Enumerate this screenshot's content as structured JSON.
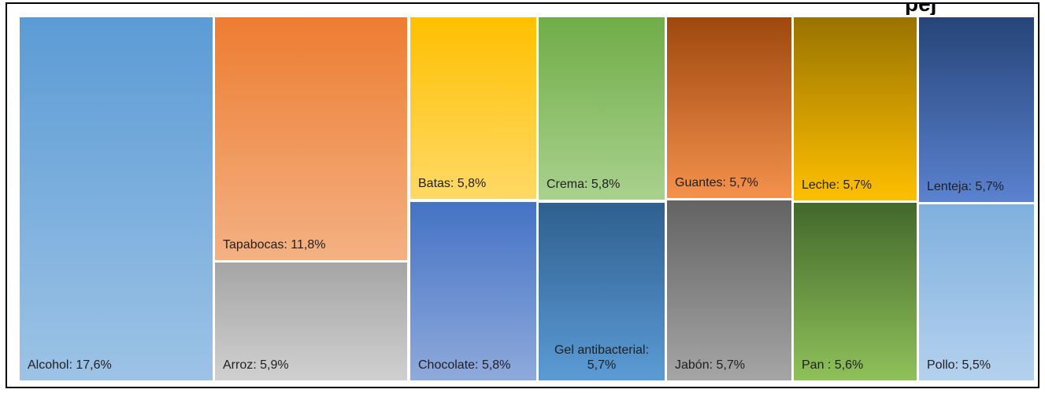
{
  "chart_data": {
    "type": "treemap",
    "title_fragment": "pej",
    "items": [
      {
        "label": "Alcohol: 17,6%",
        "name": "Alcohol",
        "value": 17.6,
        "colors": [
          "#5b9bd5",
          "#9dc3e6"
        ]
      },
      {
        "label": "Tapabocas: 11,8%",
        "name": "Tapabocas",
        "value": 11.8,
        "colors": [
          "#ed7d31",
          "#f4b183"
        ]
      },
      {
        "label": "Arroz: 5,9%",
        "name": "Arroz",
        "value": 5.9,
        "colors": [
          "#a5a5a5",
          "#d0d0d0"
        ]
      },
      {
        "label": "Batas: 5,8%",
        "name": "Batas",
        "value": 5.8,
        "colors": [
          "#ffc000",
          "#ffd966"
        ]
      },
      {
        "label": "Chocolate: 5,8%",
        "name": "Chocolate",
        "value": 5.8,
        "colors": [
          "#4472c4",
          "#8faadc"
        ]
      },
      {
        "label": "Crema: 5,8%",
        "name": "Crema",
        "value": 5.8,
        "colors": [
          "#70ad47",
          "#a9d18e"
        ]
      },
      {
        "label": "Gel antibacterial: 5,7%",
        "name": "Gel antibacterial",
        "value": 5.7,
        "colors": [
          "#2f5f8f",
          "#5b9bd5"
        ]
      },
      {
        "label": "Guantes: 5,7%",
        "name": "Guantes",
        "value": 5.7,
        "colors": [
          "#9e480e",
          "#f4914d"
        ]
      },
      {
        "label": "Jabón: 5,7%",
        "name": "Jabón",
        "value": 5.7,
        "colors": [
          "#636363",
          "#a5a5a5"
        ]
      },
      {
        "label": "Leche: 5,7%",
        "name": "Leche",
        "value": 5.7,
        "colors": [
          "#997300",
          "#ffc000"
        ]
      },
      {
        "label": "Pan : 5,6%",
        "name": "Pan",
        "value": 5.6,
        "colors": [
          "#43682b",
          "#8fc15a"
        ]
      },
      {
        "label": "Lenteja: 5,7%",
        "name": "Lenteja",
        "value": 5.7,
        "colors": [
          "#264478",
          "#5b82d0"
        ]
      },
      {
        "label": "Pollo: 5,5%",
        "name": "Pollo",
        "value": 5.5,
        "colors": [
          "#7fb0de",
          "#b4d1ee"
        ]
      }
    ]
  }
}
